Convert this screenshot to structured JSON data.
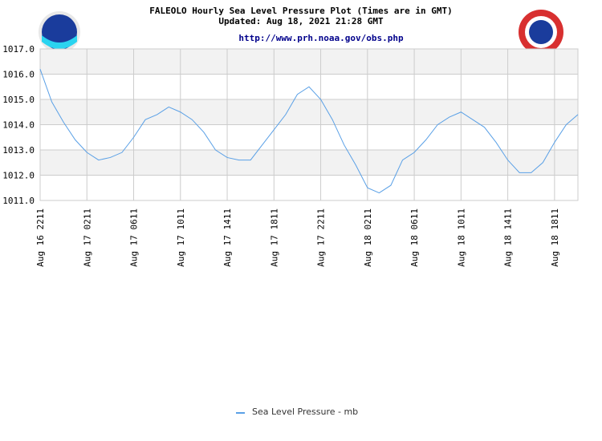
{
  "chart_data": {
    "type": "line",
    "title": "FALEOLO Hourly Sea Level Pressure Plot (Times are in GMT)",
    "subtitle": "Updated: Aug 18, 2021 21:28 GMT",
    "source": "http://www.prh.noaa.gov/obs.php",
    "categories": [
      "Aug 16 2211",
      null,
      null,
      null,
      "Aug 17 0211",
      null,
      null,
      null,
      "Aug 17 0611",
      null,
      null,
      null,
      "Aug 17 1011",
      null,
      null,
      null,
      "Aug 17 1411",
      null,
      null,
      null,
      "Aug 17 1811",
      null,
      null,
      null,
      "Aug 17 2211",
      null,
      null,
      null,
      "Aug 18 0211",
      null,
      null,
      null,
      "Aug 18 0611",
      null,
      null,
      null,
      "Aug 18 1011",
      null,
      null,
      null,
      "Aug 18 1411",
      null,
      null,
      null,
      "Aug 18 1811",
      null,
      null
    ],
    "series": [
      {
        "name": "Sea Level Pressure - mb",
        "color": "#5aa0e6",
        "values": [
          1016.2,
          1014.9,
          1014.1,
          1013.4,
          1012.9,
          1012.6,
          1012.7,
          1012.9,
          1013.5,
          1014.2,
          1014.4,
          1014.7,
          1014.5,
          1014.2,
          1013.7,
          1013.0,
          1012.7,
          1012.6,
          1012.6,
          1013.2,
          1013.8,
          1014.4,
          1015.2,
          1015.5,
          1015.0,
          1014.2,
          1013.2,
          1012.4,
          1011.5,
          1011.3,
          1011.6,
          1012.6,
          1012.9,
          1013.4,
          1014.0,
          1014.3,
          1014.5,
          1014.2,
          1013.9,
          1013.3,
          1012.6,
          1012.1,
          1012.1,
          1012.5,
          1013.3,
          1014.0,
          1014.4
        ]
      }
    ],
    "ylim": [
      1011,
      1017
    ],
    "yticks": [
      {
        "value": 1011,
        "label": "1011.0"
      },
      {
        "value": 1012,
        "label": "1012.0"
      },
      {
        "value": 1013,
        "label": "1013.0"
      },
      {
        "value": 1014,
        "label": "1014.0"
      },
      {
        "value": 1015,
        "label": "1015.0"
      },
      {
        "value": 1016,
        "label": "1016.0"
      },
      {
        "value": 1017,
        "label": "1017.0"
      }
    ],
    "grid": true
  }
}
